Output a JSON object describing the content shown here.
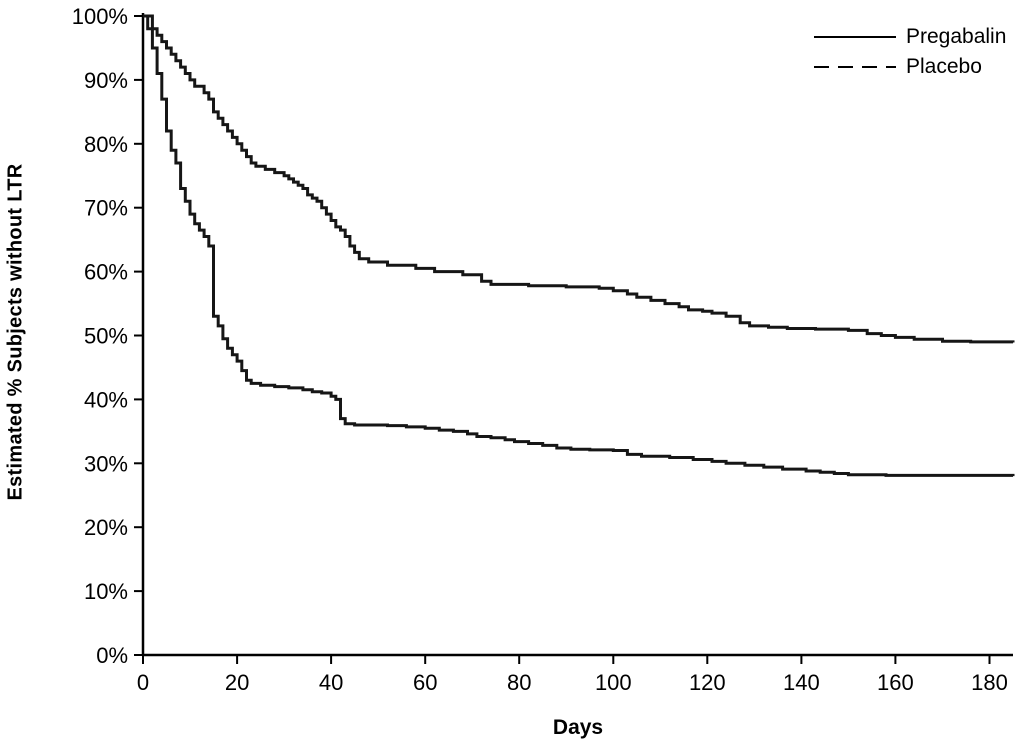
{
  "chart_data": {
    "type": "line",
    "subtype": "kaplan-meier-step",
    "title": "",
    "xlabel": "Days",
    "ylabel": "Estimated % Subjects without LTR",
    "xlim": [
      0,
      185
    ],
    "ylim": [
      0,
      100
    ],
    "x_ticks": [
      0,
      20,
      40,
      60,
      80,
      100,
      120,
      140,
      160,
      180
    ],
    "y_ticks": [
      0,
      10,
      20,
      30,
      40,
      50,
      60,
      70,
      80,
      90,
      100
    ],
    "y_tick_suffix": "%",
    "grid": false,
    "legend_position": "top-right",
    "line_color": "#161616",
    "series": [
      {
        "name": "Pregabalin",
        "line_style": "solid",
        "color": "#161616",
        "points": [
          [
            0,
            100
          ],
          [
            2,
            98
          ],
          [
            3,
            97
          ],
          [
            4,
            96
          ],
          [
            5,
            95
          ],
          [
            6,
            94
          ],
          [
            7,
            93
          ],
          [
            8,
            92
          ],
          [
            9,
            91
          ],
          [
            10,
            90
          ],
          [
            11,
            89
          ],
          [
            13,
            88
          ],
          [
            14,
            87
          ],
          [
            15,
            85
          ],
          [
            16,
            84
          ],
          [
            17,
            83
          ],
          [
            18,
            82
          ],
          [
            19,
            81
          ],
          [
            20,
            80
          ],
          [
            21,
            79
          ],
          [
            22,
            78
          ],
          [
            23,
            77
          ],
          [
            24,
            76.5
          ],
          [
            26,
            76
          ],
          [
            28,
            75.5
          ],
          [
            30,
            75
          ],
          [
            31,
            74.5
          ],
          [
            32,
            74
          ],
          [
            33,
            73.5
          ],
          [
            34,
            73
          ],
          [
            35,
            72
          ],
          [
            36,
            71.5
          ],
          [
            37,
            71
          ],
          [
            38,
            70
          ],
          [
            39,
            69
          ],
          [
            40,
            68
          ],
          [
            41,
            67
          ],
          [
            42,
            66.5
          ],
          [
            43,
            65.5
          ],
          [
            44,
            64
          ],
          [
            45,
            63
          ],
          [
            46,
            62
          ],
          [
            48,
            61.5
          ],
          [
            52,
            61
          ],
          [
            58,
            60.5
          ],
          [
            62,
            60
          ],
          [
            68,
            59.5
          ],
          [
            72,
            58.5
          ],
          [
            74,
            58
          ],
          [
            82,
            57.8
          ],
          [
            90,
            57.6
          ],
          [
            97,
            57.4
          ],
          [
            100,
            57
          ],
          [
            103,
            56.5
          ],
          [
            105,
            56
          ],
          [
            108,
            55.5
          ],
          [
            111,
            55
          ],
          [
            114,
            54.5
          ],
          [
            116,
            54
          ],
          [
            119,
            53.8
          ],
          [
            121,
            53.5
          ],
          [
            124,
            53
          ],
          [
            127,
            52
          ],
          [
            129,
            51.5
          ],
          [
            133,
            51.3
          ],
          [
            137,
            51.1
          ],
          [
            143,
            51
          ],
          [
            150,
            50.8
          ],
          [
            154,
            50.3
          ],
          [
            157,
            50
          ],
          [
            160,
            49.7
          ],
          [
            164,
            49.4
          ],
          [
            170,
            49.1
          ],
          [
            176,
            49
          ],
          [
            185,
            48.9
          ]
        ]
      },
      {
        "name": "Placebo",
        "line_style": "dashed",
        "color": "#161616",
        "points": [
          [
            0,
            100
          ],
          [
            1,
            98
          ],
          [
            2,
            95
          ],
          [
            3,
            91
          ],
          [
            4,
            87
          ],
          [
            5,
            82
          ],
          [
            6,
            79
          ],
          [
            7,
            77
          ],
          [
            8,
            73
          ],
          [
            9,
            71
          ],
          [
            10,
            69
          ],
          [
            11,
            67.5
          ],
          [
            12,
            66.5
          ],
          [
            13,
            65.5
          ],
          [
            14,
            64
          ],
          [
            15,
            53
          ],
          [
            16,
            51.5
          ],
          [
            17,
            49.5
          ],
          [
            18,
            48
          ],
          [
            19,
            47
          ],
          [
            20,
            46
          ],
          [
            21,
            44.5
          ],
          [
            22,
            43
          ],
          [
            23,
            42.5
          ],
          [
            25,
            42.2
          ],
          [
            28,
            42
          ],
          [
            31,
            41.8
          ],
          [
            34,
            41.5
          ],
          [
            36,
            41.2
          ],
          [
            38,
            41
          ],
          [
            40,
            40.5
          ],
          [
            41,
            40
          ],
          [
            42,
            37
          ],
          [
            43,
            36.2
          ],
          [
            45,
            36
          ],
          [
            52,
            35.9
          ],
          [
            56,
            35.7
          ],
          [
            60,
            35.5
          ],
          [
            63,
            35.2
          ],
          [
            66,
            35
          ],
          [
            69,
            34.6
          ],
          [
            71,
            34.2
          ],
          [
            74,
            34
          ],
          [
            77,
            33.7
          ],
          [
            79,
            33.4
          ],
          [
            82,
            33.1
          ],
          [
            85,
            32.8
          ],
          [
            88,
            32.4
          ],
          [
            91,
            32.2
          ],
          [
            95,
            32.1
          ],
          [
            100,
            32
          ],
          [
            103,
            31.4
          ],
          [
            106,
            31.1
          ],
          [
            112,
            30.9
          ],
          [
            117,
            30.6
          ],
          [
            121,
            30.3
          ],
          [
            124,
            30
          ],
          [
            128,
            29.7
          ],
          [
            132,
            29.4
          ],
          [
            136,
            29.1
          ],
          [
            141,
            28.8
          ],
          [
            144,
            28.6
          ],
          [
            147,
            28.4
          ],
          [
            150,
            28.2
          ],
          [
            158,
            28.1
          ],
          [
            185,
            28
          ]
        ]
      }
    ]
  }
}
